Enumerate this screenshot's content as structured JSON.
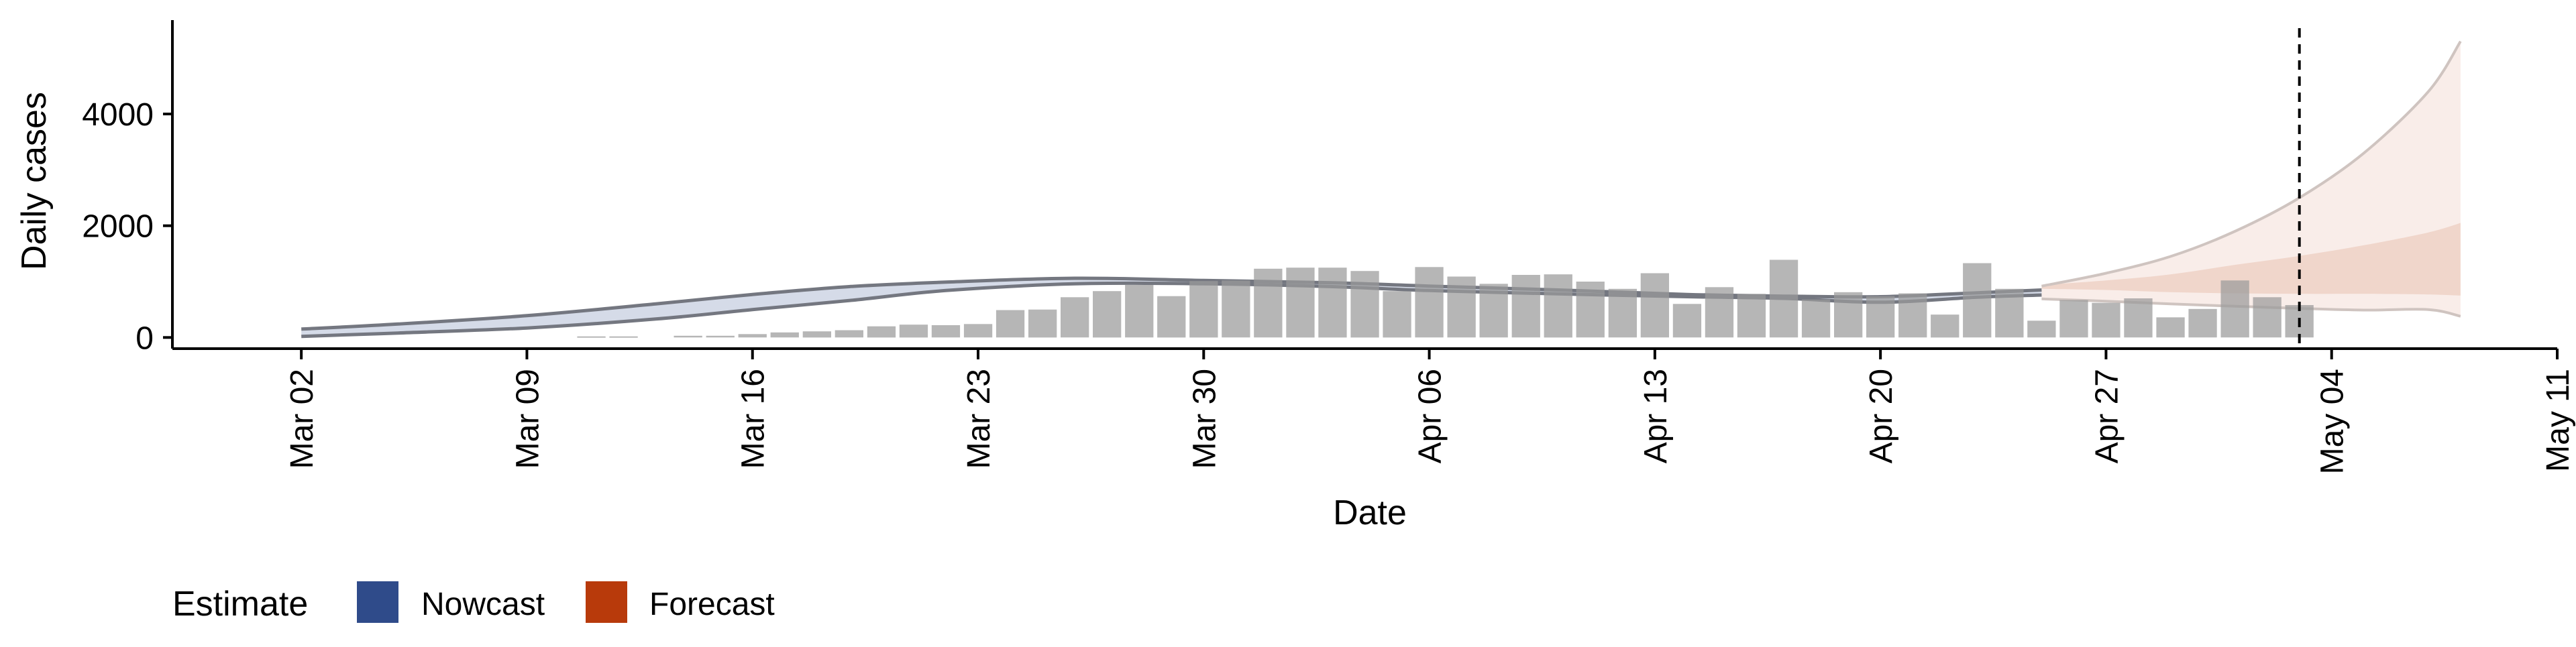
{
  "chart_data": {
    "type": "bar",
    "xlabel": "Date",
    "ylabel": "Daily cases",
    "x_range": [
      "2020-02-27",
      "2020-05-11"
    ],
    "ylim": [
      -200,
      5800
    ],
    "x_ticks": [
      {
        "date": "2020-03-02",
        "label": "Mar 02"
      },
      {
        "date": "2020-03-09",
        "label": "Mar 09"
      },
      {
        "date": "2020-03-16",
        "label": "Mar 16"
      },
      {
        "date": "2020-03-23",
        "label": "Mar 23"
      },
      {
        "date": "2020-03-30",
        "label": "Mar 30"
      },
      {
        "date": "2020-04-06",
        "label": "Apr 06"
      },
      {
        "date": "2020-04-13",
        "label": "Apr 13"
      },
      {
        "date": "2020-04-20",
        "label": "Apr 20"
      },
      {
        "date": "2020-04-27",
        "label": "Apr 27"
      },
      {
        "date": "2020-05-04",
        "label": "May 04"
      },
      {
        "date": "2020-05-11",
        "label": "May 11"
      }
    ],
    "y_ticks": [
      {
        "value": 0,
        "label": "0"
      },
      {
        "value": 2000,
        "label": "2000"
      },
      {
        "value": 4000,
        "label": "4000"
      }
    ],
    "vline_date": "2020-05-03",
    "bars": {
      "dates": [
        "2020-03-11",
        "2020-03-12",
        "2020-03-14",
        "2020-03-15",
        "2020-03-16",
        "2020-03-17",
        "2020-03-18",
        "2020-03-19",
        "2020-03-20",
        "2020-03-21",
        "2020-03-22",
        "2020-03-23",
        "2020-03-24",
        "2020-03-25",
        "2020-03-26",
        "2020-03-27",
        "2020-03-28",
        "2020-03-29",
        "2020-03-30",
        "2020-03-31",
        "2020-04-01",
        "2020-04-02",
        "2020-04-03",
        "2020-04-04",
        "2020-04-05",
        "2020-04-06",
        "2020-04-07",
        "2020-04-08",
        "2020-04-09",
        "2020-04-10",
        "2020-04-11",
        "2020-04-12",
        "2020-04-13",
        "2020-04-14",
        "2020-04-15",
        "2020-04-16",
        "2020-04-17",
        "2020-04-18",
        "2020-04-19",
        "2020-04-20",
        "2020-04-21",
        "2020-04-22",
        "2020-04-23",
        "2020-04-24",
        "2020-04-25",
        "2020-04-26",
        "2020-04-27",
        "2020-04-28",
        "2020-04-29",
        "2020-04-30",
        "2020-05-01",
        "2020-05-02",
        "2020-05-03"
      ],
      "values": [
        20,
        20,
        30,
        30,
        60,
        90,
        110,
        130,
        200,
        230,
        220,
        240,
        490,
        500,
        720,
        830,
        940,
        740,
        1010,
        1020,
        1230,
        1250,
        1250,
        1190,
        830,
        1260,
        1090,
        960,
        1120,
        1130,
        1000,
        870,
        1150,
        600,
        900,
        780,
        1390,
        680,
        810,
        740,
        790,
        410,
        1330,
        870,
        300,
        670,
        620,
        700,
        360,
        510,
        1020,
        720,
        580
      ]
    },
    "series": [
      {
        "name": "Nowcast",
        "color": "#2f4b8a",
        "dates": [
          "2020-03-02",
          "2020-03-05",
          "2020-03-09",
          "2020-03-13",
          "2020-03-16",
          "2020-03-19",
          "2020-03-22",
          "2020-03-26",
          "2020-03-30",
          "2020-04-03",
          "2020-04-06",
          "2020-04-10",
          "2020-04-14",
          "2020-04-17",
          "2020-04-20",
          "2020-04-23",
          "2020-04-25"
        ],
        "lower": [
          20,
          80,
          170,
          330,
          500,
          660,
          840,
          960,
          960,
          910,
          840,
          780,
          730,
          700,
          630,
          720,
          760
        ],
        "upper": [
          150,
          240,
          390,
          600,
          770,
          910,
          990,
          1060,
          1020,
          980,
          920,
          850,
          770,
          740,
          730,
          800,
          850
        ]
      },
      {
        "name": "Forecast",
        "color": "#b83a0b",
        "dates": [
          "2020-04-25",
          "2020-04-27",
          "2020-04-29",
          "2020-05-01",
          "2020-05-03",
          "2020-05-05",
          "2020-05-07",
          "2020-05-08"
        ],
        "outer_lower": [
          690,
          650,
          600,
          560,
          520,
          490,
          500,
          380
        ],
        "outer_upper": [
          920,
          1150,
          1450,
          1900,
          2500,
          3300,
          4400,
          5300
        ],
        "inner_lower": [
          870,
          850,
          810,
          790,
          780,
          780,
          770,
          750
        ],
        "inner_upper": [
          940,
          1020,
          1130,
          1300,
          1460,
          1650,
          1880,
          2050
        ]
      }
    ],
    "legend": {
      "position": "bottom-left",
      "title": "Estimate",
      "items": [
        {
          "label": "Nowcast",
          "color": "#2f4b8a"
        },
        {
          "label": "Forecast",
          "color": "#b83a0b"
        }
      ]
    }
  }
}
